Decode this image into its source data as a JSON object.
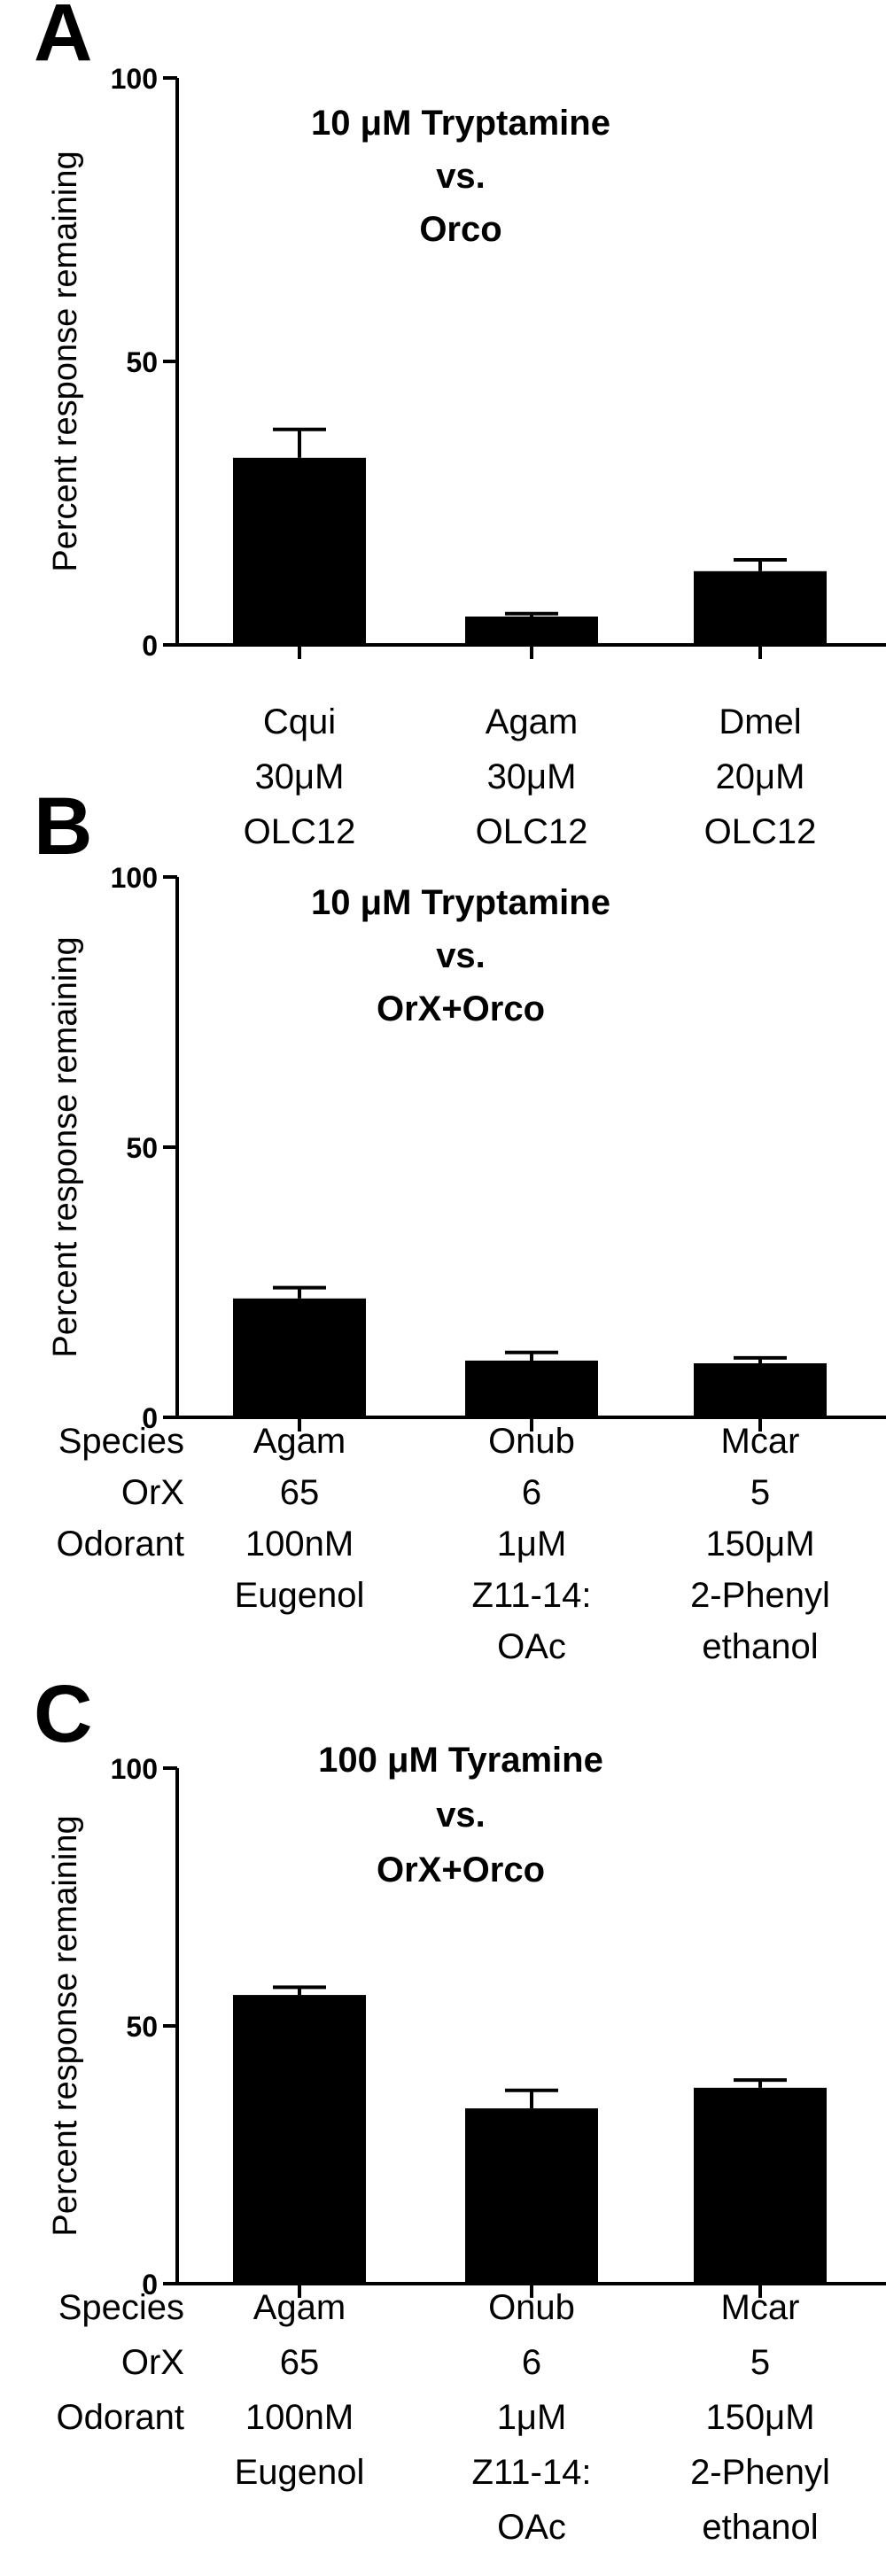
{
  "chart_data": [
    {
      "type": "bar",
      "panel_label": "A",
      "title_lines": [
        "10 μM Tryptamine",
        "vs.",
        "Orco"
      ],
      "ylabel": "Percent response remaining",
      "ylim": [
        0,
        100
      ],
      "yticks": [
        0,
        50,
        100
      ],
      "grid": false,
      "row_headers": [],
      "categories": [
        [
          "Cqui",
          "30μM",
          "OLC12"
        ],
        [
          "Agam",
          "30μM",
          "OLC12"
        ],
        [
          "Dmel",
          "20μM",
          "OLC12"
        ]
      ],
      "values": [
        33,
        5,
        13
      ],
      "errors": [
        5,
        0.5,
        2
      ]
    },
    {
      "type": "bar",
      "panel_label": "B",
      "title_lines": [
        "10 μM Tryptamine",
        "vs.",
        "OrX+Orco"
      ],
      "ylabel": "Percent response remaining",
      "ylim": [
        0,
        100
      ],
      "yticks": [
        0,
        50,
        100
      ],
      "grid": false,
      "row_headers": [
        "Species",
        "OrX",
        "Odorant"
      ],
      "categories": [
        [
          "Agam",
          "65",
          "100nM",
          "Eugenol"
        ],
        [
          "Onub",
          "6",
          "1μM",
          "Z11-14:",
          "OAc"
        ],
        [
          "Mcar",
          "5",
          "150μM",
          "2-Phenyl",
          "ethanol"
        ]
      ],
      "values": [
        22,
        10.5,
        10
      ],
      "errors": [
        2,
        1.5,
        1
      ]
    },
    {
      "type": "bar",
      "panel_label": "C",
      "title_lines": [
        "100 μM Tyramine",
        "vs.",
        "OrX+Orco"
      ],
      "ylabel": "Percent response remaining",
      "ylim": [
        0,
        100
      ],
      "yticks": [
        0,
        50,
        100
      ],
      "grid": false,
      "row_headers": [
        "Species",
        "OrX",
        "Odorant"
      ],
      "categories": [
        [
          "Agam",
          "65",
          "100nM",
          "Eugenol"
        ],
        [
          "Onub",
          "6",
          "1μM",
          "Z11-14:",
          "OAc"
        ],
        [
          "Mcar",
          "5",
          "150μM",
          "2-Phenyl",
          "ethanol"
        ]
      ],
      "values": [
        56,
        34,
        38
      ],
      "errors": [
        1.5,
        3.5,
        1.5
      ]
    }
  ]
}
